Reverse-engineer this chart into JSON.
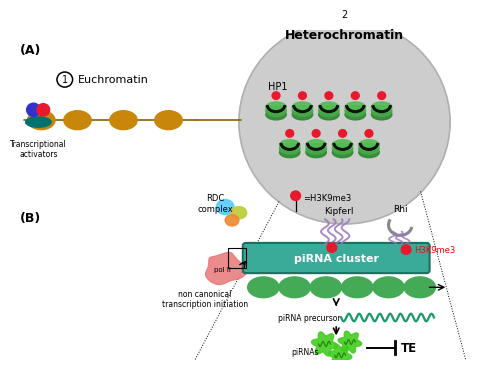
{
  "bg_color": "#ffffff",
  "label_A": "(A)",
  "label_B": "(B)",
  "euchromatin_label": "Euchromatin",
  "heterochromatin_label": "Heterochromatin",
  "HP1_label": "HP1",
  "H3K9me3_label": "=H3K9me3",
  "trans_act_label": "Transcriptional\nactivators",
  "RDC_label": "RDC\ncomplex",
  "Kipferl_label": "Kipferl",
  "Rhi_label": "Rhi",
  "H3K9me3_label2": "H3K9me3",
  "piRNA_cluster_label": "piRNA cluster",
  "pol_label": "pol II",
  "non_canonical_label": "non canonical\ntranscription initiation",
  "piRNA_precursor_label": "piRNA precursor",
  "piRNAs_label": "piRNAs",
  "TE_label": "TE",
  "circle1_num": "1",
  "circle2_num": "2",
  "nucleosome_color": "#c8860a",
  "dna_color": "#8B6000",
  "hp1_color": "#1a6b1a",
  "red_dot_color": "#e8192c",
  "blue_ellipse_color": "#3333cc",
  "pink_ellipse_color": "#e8192c",
  "teal_ellipse_color": "#007070",
  "hetero_circle_color": "#c8c8c8",
  "hetero_circle_edge": "#aaaaaa",
  "piRNA_cluster_box_color": "#3aaa99",
  "piRNA_cluster_box_edge": "#1d7060",
  "piRNA_green": "#44cc22",
  "wave_color": "#1a9966",
  "pol_color": "#e87878",
  "rdc_cyan": "#55ccff",
  "rdc_yellow": "#bbcc33",
  "rdc_orange": "#ee8833",
  "kipferl_purple": "#9977bb",
  "rhi_gray": "#888888",
  "green_nucl_color": "#44aa55",
  "hp1_arch_color": "#111111"
}
